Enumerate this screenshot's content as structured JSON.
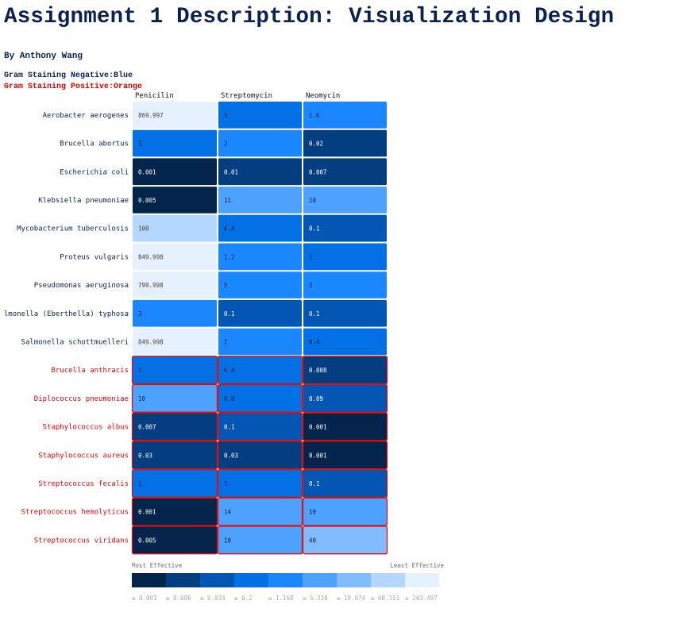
{
  "page": {
    "title": "Assignment 1 Description: Visualization Design",
    "author": "By Anthony Wang",
    "legend_negative": "Gram Staining Negative:Blue",
    "legend_positive": "Gram Staining Positive:Orange"
  },
  "colors": {
    "negative_label": "#0b2150",
    "positive_label": "#dd0000",
    "positive_border": "#dd1111",
    "negative_border": "#ffffff",
    "scale": [
      "#03254c",
      "#033e80",
      "#0356b3",
      "#0470e6",
      "#1a87ff",
      "#4da2ff",
      "#80bcff",
      "#b3d7ff",
      "#e6f1ff"
    ]
  },
  "chart_data": {
    "type": "heatmap",
    "columns": [
      "Penicilin",
      "Streptomycin",
      "Neomycin"
    ],
    "rows": [
      {
        "name": "Aerobacter aerogenes",
        "gram": "negative",
        "values": [
          "869.997",
          "1",
          "1.6"
        ]
      },
      {
        "name": "Brucella abortus",
        "gram": "negative",
        "values": [
          "1",
          "2",
          "0.02"
        ]
      },
      {
        "name": "Escherichia coli",
        "gram": "negative",
        "values": [
          "0.001",
          "0.01",
          "0.007"
        ]
      },
      {
        "name": "Klebsiella pneumoniae",
        "gram": "negative",
        "values": [
          "0.005",
          "11",
          "10"
        ]
      },
      {
        "name": "Mycobacterium tuberculosis",
        "gram": "negative",
        "values": [
          "100",
          "0.4",
          "0.1"
        ]
      },
      {
        "name": "Proteus vulgaris",
        "gram": "negative",
        "values": [
          "849.998",
          "1.2",
          "1"
        ]
      },
      {
        "name": "Pseudomonas aeruginosa",
        "gram": "negative",
        "values": [
          "799.998",
          "5",
          "2"
        ]
      },
      {
        "name": "lmonella (Eberthella) typhosa",
        "gram": "negative",
        "values": [
          "3",
          "0.1",
          "0.1"
        ]
      },
      {
        "name": "Salmonella schottmuelleri",
        "gram": "negative",
        "values": [
          "849.998",
          "2",
          "0.4"
        ]
      },
      {
        "name": "Brucella anthracis",
        "gram": "positive",
        "values": [
          "1",
          "0.4",
          "0.008"
        ]
      },
      {
        "name": "Diplococcus pneumoniae",
        "gram": "positive",
        "values": [
          "10",
          "0.8",
          "0.09"
        ]
      },
      {
        "name": "Staphylococcus albus",
        "gram": "positive",
        "values": [
          "0.007",
          "0.1",
          "0.001"
        ]
      },
      {
        "name": "Staphylococcus aureus",
        "gram": "positive",
        "values": [
          "0.03",
          "0.03",
          "0.001"
        ]
      },
      {
        "name": "Streptococcus fecalis",
        "gram": "positive",
        "values": [
          "1",
          "1",
          "0.1"
        ]
      },
      {
        "name": "Streptococcus hemolyticus",
        "gram": "positive",
        "values": [
          "0.001",
          "14",
          "10"
        ]
      },
      {
        "name": "Streptococcus viridans",
        "gram": "positive",
        "values": [
          "0.005",
          "10",
          "40"
        ]
      }
    ],
    "scale": {
      "label_low": "Most Effective",
      "label_high": "Least Effective",
      "thresholds": [
        0.001,
        0.006,
        0.034,
        0.2,
        1.168,
        5.339,
        19.074,
        68.151,
        243.497
      ],
      "tick_labels": [
        "≥ 0.001",
        "≥ 0.006",
        "≥ 0.034",
        "≥ 0.2",
        "≥ 1.168",
        "≥ 5.339",
        "≥ 19.074",
        "≥ 68.151",
        "≥ 243.497"
      ]
    }
  }
}
